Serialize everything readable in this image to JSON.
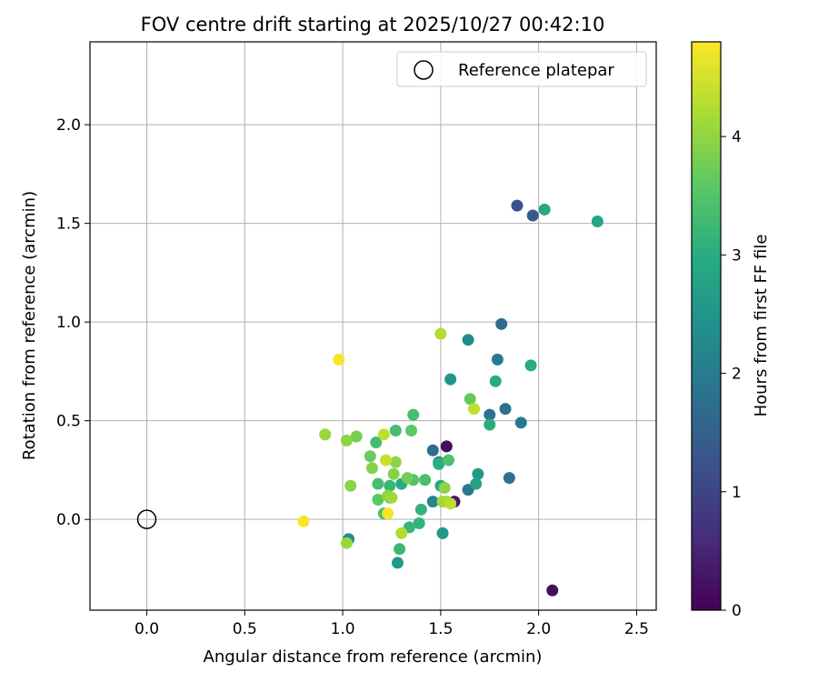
{
  "chart_data": {
    "type": "scatter",
    "title": "FOV centre drift starting at 2025/10/27 00:42:10",
    "xlabel": "Angular distance from reference (arcmin)",
    "ylabel": "Rotation from reference (arcmin)",
    "xlim": [
      -0.29,
      2.6
    ],
    "ylim": [
      -0.46,
      2.42
    ],
    "xticks": [
      0.0,
      0.5,
      1.0,
      1.5,
      2.0,
      2.5
    ],
    "xtick_labels": [
      "0.0",
      "0.5",
      "1.0",
      "1.5",
      "2.0",
      "2.5"
    ],
    "yticks": [
      0.0,
      0.5,
      1.0,
      1.5,
      2.0
    ],
    "ytick_labels": [
      "0.0",
      "0.5",
      "1.0",
      "1.5",
      "2.0"
    ],
    "grid": true,
    "legend": {
      "position": "top-right",
      "entries": [
        "Reference platepar"
      ]
    },
    "reference_point": {
      "x": 0.0,
      "y": 0.0,
      "label": "Reference platepar"
    },
    "colorbar": {
      "label": "Hours from first FF file",
      "colormap": "viridis",
      "range": [
        0,
        4.8
      ],
      "ticks": [
        0,
        1,
        2,
        3,
        4
      ],
      "tick_labels": [
        "0",
        "1",
        "2",
        "3",
        "4"
      ]
    },
    "points": [
      {
        "x": 1.53,
        "y": 0.37,
        "c": 0.15
      },
      {
        "x": 1.57,
        "y": 0.09,
        "c": 0.3
      },
      {
        "x": 2.07,
        "y": -0.36,
        "c": 0.2
      },
      {
        "x": 1.89,
        "y": 1.59,
        "c": 1.2
      },
      {
        "x": 1.97,
        "y": 1.54,
        "c": 1.35
      },
      {
        "x": 1.81,
        "y": 0.99,
        "c": 1.7
      },
      {
        "x": 1.46,
        "y": 0.35,
        "c": 1.7
      },
      {
        "x": 1.79,
        "y": 0.81,
        "c": 2.0
      },
      {
        "x": 1.83,
        "y": 0.56,
        "c": 1.8
      },
      {
        "x": 1.75,
        "y": 0.53,
        "c": 1.85
      },
      {
        "x": 1.91,
        "y": 0.49,
        "c": 1.95
      },
      {
        "x": 1.85,
        "y": 0.21,
        "c": 1.8
      },
      {
        "x": 1.64,
        "y": 0.15,
        "c": 2.0
      },
      {
        "x": 1.46,
        "y": 0.09,
        "c": 2.2
      },
      {
        "x": 1.64,
        "y": 0.91,
        "c": 2.3
      },
      {
        "x": 1.55,
        "y": 0.71,
        "c": 2.5
      },
      {
        "x": 1.49,
        "y": 0.29,
        "c": 2.25
      },
      {
        "x": 1.03,
        "y": -0.1,
        "c": 2.3
      },
      {
        "x": 1.69,
        "y": 0.23,
        "c": 2.6
      },
      {
        "x": 1.68,
        "y": 0.18,
        "c": 2.75
      },
      {
        "x": 1.51,
        "y": -0.07,
        "c": 2.6
      },
      {
        "x": 1.28,
        "y": -0.22,
        "c": 2.6
      },
      {
        "x": 2.03,
        "y": 1.57,
        "c": 2.9
      },
      {
        "x": 2.3,
        "y": 1.51,
        "c": 2.85
      },
      {
        "x": 1.96,
        "y": 0.78,
        "c": 3.0
      },
      {
        "x": 1.78,
        "y": 0.7,
        "c": 3.0
      },
      {
        "x": 1.75,
        "y": 0.48,
        "c": 3.0
      },
      {
        "x": 1.49,
        "y": 0.28,
        "c": 3.05
      },
      {
        "x": 1.5,
        "y": 0.17,
        "c": 2.95
      },
      {
        "x": 1.3,
        "y": 0.18,
        "c": 3.0
      },
      {
        "x": 1.4,
        "y": 0.05,
        "c": 3.1
      },
      {
        "x": 1.39,
        "y": -0.02,
        "c": 3.15
      },
      {
        "x": 1.34,
        "y": -0.04,
        "c": 3.2
      },
      {
        "x": 1.29,
        "y": -0.15,
        "c": 3.25
      },
      {
        "x": 1.24,
        "y": 0.17,
        "c": 3.2
      },
      {
        "x": 1.18,
        "y": 0.18,
        "c": 3.35
      },
      {
        "x": 1.27,
        "y": 0.45,
        "c": 3.35
      },
      {
        "x": 1.36,
        "y": 0.53,
        "c": 3.35
      },
      {
        "x": 1.17,
        "y": 0.39,
        "c": 3.3
      },
      {
        "x": 1.21,
        "y": 0.03,
        "c": 3.35
      },
      {
        "x": 1.42,
        "y": 0.2,
        "c": 3.4
      },
      {
        "x": 1.36,
        "y": 0.2,
        "c": 3.5
      },
      {
        "x": 1.54,
        "y": 0.3,
        "c": 3.45
      },
      {
        "x": 1.35,
        "y": 0.45,
        "c": 3.6
      },
      {
        "x": 1.65,
        "y": 0.61,
        "c": 3.65
      },
      {
        "x": 1.24,
        "y": 0.11,
        "c": 3.6
      },
      {
        "x": 1.18,
        "y": 0.1,
        "c": 3.6
      },
      {
        "x": 1.14,
        "y": 0.32,
        "c": 3.7
      },
      {
        "x": 1.33,
        "y": 0.21,
        "c": 3.75
      },
      {
        "x": 1.07,
        "y": 0.42,
        "c": 3.8
      },
      {
        "x": 1.26,
        "y": 0.23,
        "c": 3.9
      },
      {
        "x": 1.15,
        "y": 0.26,
        "c": 3.9
      },
      {
        "x": 1.02,
        "y": 0.4,
        "c": 3.95
      },
      {
        "x": 1.04,
        "y": 0.17,
        "c": 3.95
      },
      {
        "x": 1.52,
        "y": 0.16,
        "c": 3.95
      },
      {
        "x": 1.27,
        "y": 0.29,
        "c": 3.95
      },
      {
        "x": 1.23,
        "y": 0.12,
        "c": 4.0
      },
      {
        "x": 0.91,
        "y": 0.43,
        "c": 4.05
      },
      {
        "x": 1.02,
        "y": -0.12,
        "c": 4.05
      },
      {
        "x": 1.25,
        "y": 0.11,
        "c": 4.1
      },
      {
        "x": 1.51,
        "y": 0.09,
        "c": 4.1
      },
      {
        "x": 1.53,
        "y": 0.09,
        "c": 4.15
      },
      {
        "x": 1.5,
        "y": 0.94,
        "c": 4.25
      },
      {
        "x": 1.3,
        "y": -0.07,
        "c": 4.25
      },
      {
        "x": 1.55,
        "y": 0.08,
        "c": 4.3
      },
      {
        "x": 1.67,
        "y": 0.56,
        "c": 4.35
      },
      {
        "x": 1.21,
        "y": 0.43,
        "c": 4.35
      },
      {
        "x": 1.22,
        "y": 0.3,
        "c": 4.4
      },
      {
        "x": 0.98,
        "y": 0.81,
        "c": 4.75
      },
      {
        "x": 0.8,
        "y": -0.01,
        "c": 4.75
      },
      {
        "x": 1.23,
        "y": 0.03,
        "c": 4.75
      }
    ]
  }
}
